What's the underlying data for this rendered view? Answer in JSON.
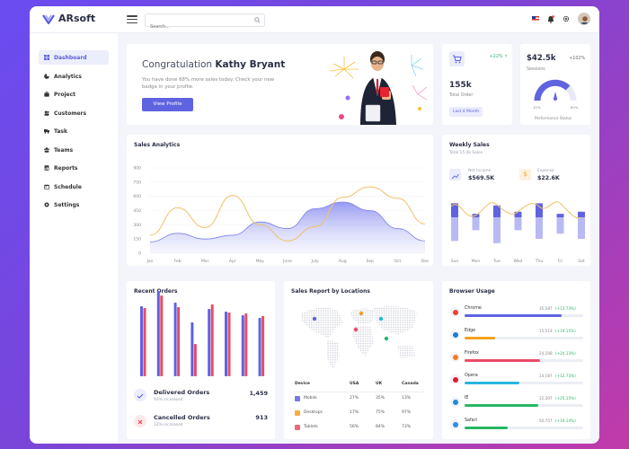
{
  "brand": {
    "name": "ARsoft"
  },
  "search": {
    "placeholder": "Search..."
  },
  "sidebar": {
    "items": [
      {
        "label": "Dashboard",
        "icon": "grid-icon"
      },
      {
        "label": "Analytics",
        "icon": "pie-icon"
      },
      {
        "label": "Project",
        "icon": "briefcase-icon"
      },
      {
        "label": "Customers",
        "icon": "users-icon"
      },
      {
        "label": "Task",
        "icon": "truck-icon"
      },
      {
        "label": "Teams",
        "icon": "team-icon"
      },
      {
        "label": "Reports",
        "icon": "chart-icon"
      },
      {
        "label": "Schedule",
        "icon": "calendar-icon"
      },
      {
        "label": "Settings",
        "icon": "gear-icon"
      }
    ]
  },
  "welcome": {
    "greeting": "Congratulation",
    "name": "Kathy Bryant",
    "line1": "You have done 68% more sales today. Check your new",
    "line2": "badge in your profile.",
    "button": "View Profile"
  },
  "orders": {
    "percent": "+22% ↑",
    "value": "155k",
    "label": "Total Order",
    "chip": "Last 4 Month"
  },
  "sessions": {
    "value": "$42.5k",
    "percent": "+102%",
    "label": "Sessions",
    "min": "10%",
    "max": "80%",
    "status": "Performance Status"
  },
  "sales_analytics": {
    "title": "Sales Analytics"
  },
  "chart_data": [
    {
      "type": "area",
      "title": "Sales Analytics",
      "categories": [
        "Jan",
        "Feb",
        "Mar",
        "Apr",
        "May",
        "June",
        "July",
        "Aug",
        "Sep",
        "Oct",
        "Dec"
      ],
      "yticks": [
        "900",
        "750",
        "600",
        "450",
        "300",
        "150",
        "0"
      ],
      "ylim": [
        0,
        900
      ],
      "series": [
        {
          "values": [
            120,
            210,
            150,
            190,
            330,
            260,
            470,
            540,
            450,
            260,
            130
          ]
        },
        {
          "values": [
            190,
            480,
            270,
            610,
            300,
            130,
            280,
            590,
            700,
            580,
            310
          ]
        }
      ]
    },
    {
      "type": "bar",
      "title": "Weekly Sales",
      "categories": [
        "Sun",
        "Mon",
        "Tue",
        "Wed",
        "Thu",
        "Fri",
        "Sat"
      ],
      "series": [
        {
          "values": [
            80,
            55,
            75,
            60,
            80,
            55,
            60
          ]
        },
        {
          "values": [
            55,
            30,
            60,
            30,
            50,
            38,
            50
          ]
        }
      ]
    },
    {
      "type": "bar",
      "title": "Recent Orders",
      "series": [
        {
          "values": [
            78,
            95,
            82,
            60,
            75,
            72,
            68,
            65
          ]
        },
        {
          "values": [
            76,
            90,
            77,
            36,
            80,
            71,
            70,
            67
          ]
        }
      ]
    }
  ],
  "weekly_sales": {
    "title": "Weekly Sales",
    "subtitle": "Total 15.4k Sales",
    "net_income_label": "Net Income",
    "net_income": "$569.5K",
    "expense_label": "Expense",
    "expense": "$22.6K"
  },
  "recent_orders": {
    "title": "Recent Orders",
    "delivered_label": "Delivered Orders",
    "delivered_value": "1,459",
    "delivered_sub": "93% increased",
    "cancelled_label": "Cancelled Orders",
    "cancelled_value": "913",
    "cancelled_sub": "12% increased"
  },
  "locations": {
    "title": "Sales Report by Locations",
    "headers": [
      "Device",
      "USA",
      "UK",
      "Canada"
    ],
    "rows": [
      {
        "device": "Mobile",
        "usa": "27%",
        "uk": "35%",
        "canada": "13%"
      },
      {
        "device": "Desktops",
        "usa": "17%",
        "uk": "75%",
        "canada": "97%"
      },
      {
        "device": "Tablets",
        "usa": "56%",
        "uk": "84%",
        "canada": "73%"
      }
    ]
  },
  "browser": {
    "title": "Browser Usage",
    "items": [
      {
        "name": "Chrome",
        "count": "35,587",
        "pct": "(+13.73%)",
        "fill": 0.82,
        "color": "#5f63e0",
        "icon_color": "#e94335",
        "bar_color": "#5f63e0"
      },
      {
        "name": "Edge",
        "count": "15,514",
        "pct": "(+19.15%)",
        "fill": 0.26,
        "color": "#f3a11c",
        "icon_color": "#1b7fd3",
        "bar_color": "#f3a11c"
      },
      {
        "name": "Firefox",
        "count": "24,298",
        "pct": "(+24.13%)",
        "fill": 0.64,
        "color": "#ea4c66",
        "icon_color": "#f57b1f",
        "bar_color": "#ea4c66"
      },
      {
        "name": "Opera",
        "count": "14,187",
        "pct": "(+12.73%)",
        "fill": 0.46,
        "color": "#29b6e0",
        "icon_color": "#e11a2c",
        "bar_color": "#29b6e0"
      },
      {
        "name": "IE",
        "count": "22,307",
        "pct": "(+25.15%)",
        "fill": 0.62,
        "color": "#28b665",
        "icon_color": "#1b8fd8",
        "bar_color": "#28b665"
      },
      {
        "name": "Safari",
        "count": "50,757",
        "pct": "(+19.14%)",
        "fill": 0.36,
        "color": "#28b665",
        "icon_color": "#2a8fe6",
        "bar_color": "#28b665"
      }
    ]
  }
}
